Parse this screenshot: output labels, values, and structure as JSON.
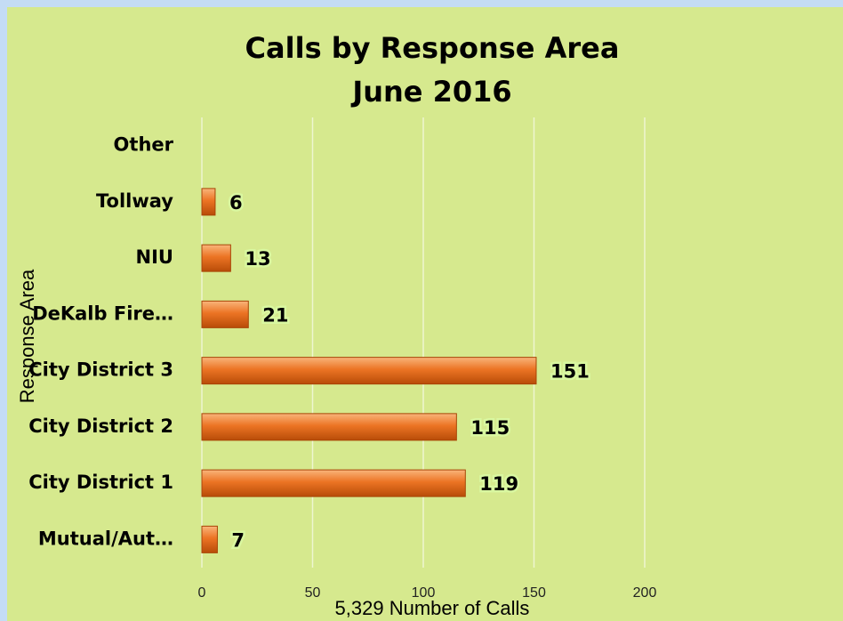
{
  "chart_data": {
    "type": "bar",
    "orientation": "horizontal",
    "title": "Calls by Response Area",
    "subtitle": "June 2016",
    "x_label": "5,329 Number of Calls",
    "y_label": "Response Area",
    "categories": [
      "Mutual/Aut…",
      "City District 1",
      "City District 2",
      "City District 3",
      "DeKalb Fire…",
      "NIU",
      "Tollway",
      "Other"
    ],
    "values": [
      7,
      119,
      115,
      151,
      21,
      13,
      6,
      null
    ],
    "color": "#e8701a",
    "xlim": [
      0,
      200
    ],
    "xticks": [
      0,
      50,
      100,
      150,
      200
    ],
    "grid": true
  }
}
